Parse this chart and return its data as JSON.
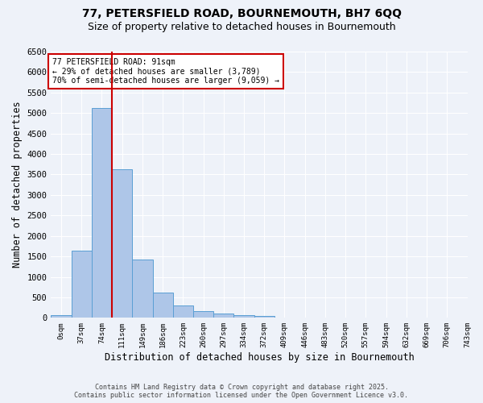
{
  "title1": "77, PETERSFIELD ROAD, BOURNEMOUTH, BH7 6QQ",
  "title2": "Size of property relative to detached houses in Bournemouth",
  "xlabel": "Distribution of detached houses by size in Bournemouth",
  "ylabel": "Number of detached properties",
  "bar_values": [
    60,
    1640,
    5120,
    3620,
    1420,
    610,
    305,
    160,
    100,
    70,
    40,
    10,
    0,
    0,
    0,
    0,
    0,
    0,
    0,
    0
  ],
  "bar_labels": [
    "0sqm",
    "37sqm",
    "74sqm",
    "111sqm",
    "149sqm",
    "186sqm",
    "223sqm",
    "260sqm",
    "297sqm",
    "334sqm",
    "372sqm",
    "409sqm",
    "446sqm",
    "483sqm",
    "520sqm",
    "557sqm",
    "594sqm",
    "632sqm",
    "669sqm",
    "706sqm",
    "743sqm"
  ],
  "bar_color": "#aec6e8",
  "bar_edge_color": "#5a9fd4",
  "vline_color": "#cc0000",
  "vline_x_index": 2.5,
  "annotation_title": "77 PETERSFIELD ROAD: 91sqm",
  "annotation_line1": "← 29% of detached houses are smaller (3,789)",
  "annotation_line2": "70% of semi-detached houses are larger (9,059) →",
  "annotation_box_color": "#cc0000",
  "ylim": [
    0,
    6500
  ],
  "yticks": [
    0,
    500,
    1000,
    1500,
    2000,
    2500,
    3000,
    3500,
    4000,
    4500,
    5000,
    5500,
    6000,
    6500
  ],
  "footer1": "Contains HM Land Registry data © Crown copyright and database right 2025.",
  "footer2": "Contains public sector information licensed under the Open Government Licence v3.0.",
  "bg_color": "#eef2f9",
  "grid_color": "#ffffff",
  "title1_fontsize": 10,
  "title2_fontsize": 9,
  "num_bars": 20
}
